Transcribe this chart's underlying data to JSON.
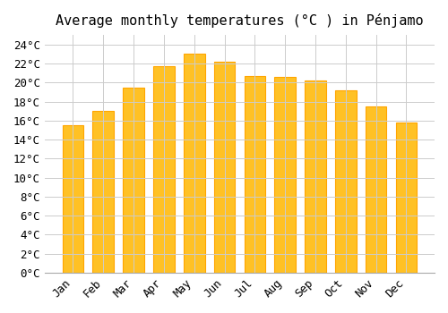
{
  "title": "Average monthly temperatures (°C ) in Pénjamo",
  "months": [
    "Jan",
    "Feb",
    "Mar",
    "Apr",
    "May",
    "Jun",
    "Jul",
    "Aug",
    "Sep",
    "Oct",
    "Nov",
    "Dec"
  ],
  "values": [
    15.5,
    17.0,
    19.5,
    21.7,
    23.0,
    22.2,
    20.7,
    20.6,
    20.2,
    19.2,
    17.5,
    15.8
  ],
  "bar_color": "#FFC125",
  "bar_edge_color": "#FFA500",
  "background_color": "#FFFFFF",
  "grid_color": "#CCCCCC",
  "ylim": [
    0,
    25
  ],
  "ytick_step": 2,
  "title_fontsize": 11,
  "tick_fontsize": 9,
  "font_family": "monospace"
}
